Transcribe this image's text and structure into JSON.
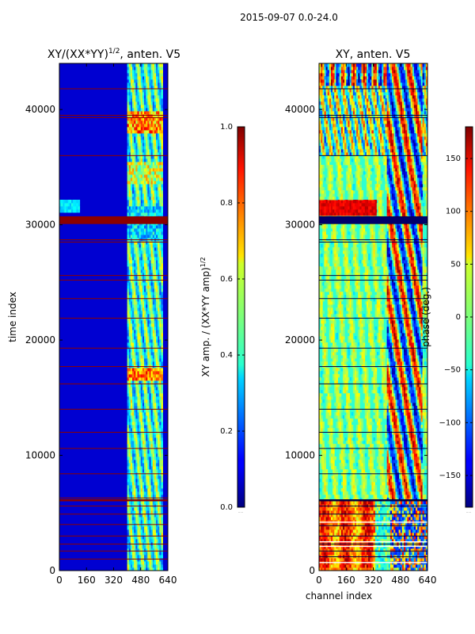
{
  "figure": {
    "suptitle": "2015-09-07 0.0-24.0"
  },
  "chart_data": [
    {
      "type": "heatmap",
      "title": "XY/(XX*YY)^1/2, anten. V5",
      "title_parts": {
        "main": "XY/(XX*YY)",
        "exp": "1/2",
        "tail": ", anten. V5"
      },
      "xlabel": "",
      "ylabel": "time index",
      "x_ticks": [
        "0",
        "160",
        "320",
        "480",
        "640"
      ],
      "y_ticks": [
        "0",
        "10000",
        "20000",
        "30000",
        "40000"
      ],
      "xlim": [
        0,
        640
      ],
      "ylim": [
        0,
        44000
      ],
      "colormap": "jet",
      "description_values": "normalized cross-correlation amplitude; low (~0.05) across most channels, elevated (0.3-0.9) in channel band ~400-610",
      "colorbar": {
        "label_parts": {
          "main": "XY amp. / (XX*YY amp)",
          "exp": "1/2"
        },
        "range": [
          0.0,
          1.0
        ],
        "ticks": [
          "0.0",
          "0.2",
          "0.4",
          "0.6",
          "0.8",
          "1.0"
        ],
        "extra": "....."
      }
    },
    {
      "type": "heatmap",
      "title": "XY, anten. V5",
      "xlabel": "channel index",
      "ylabel": "",
      "x_ticks": [
        "0",
        "160",
        "320",
        "480",
        "640"
      ],
      "y_ticks": [
        "0",
        "10000",
        "20000",
        "30000",
        "40000"
      ],
      "xlim": [
        0,
        640
      ],
      "ylim": [
        0,
        44000
      ],
      "colormap": "jet",
      "description_values": "cross-correlation phase in degrees, mostly near 0 with vertical stripes; strong structure for time index < 6000 and channels 400-640",
      "colorbar": {
        "label": "phase (deg.)",
        "range": [
          -180,
          180
        ],
        "ticks": [
          "150",
          "100",
          "50",
          "0",
          "−50",
          "−100",
          "−150"
        ],
        "tick_values": [
          150,
          100,
          50,
          0,
          -50,
          -100,
          -150
        ],
        "extra": "....."
      }
    }
  ]
}
